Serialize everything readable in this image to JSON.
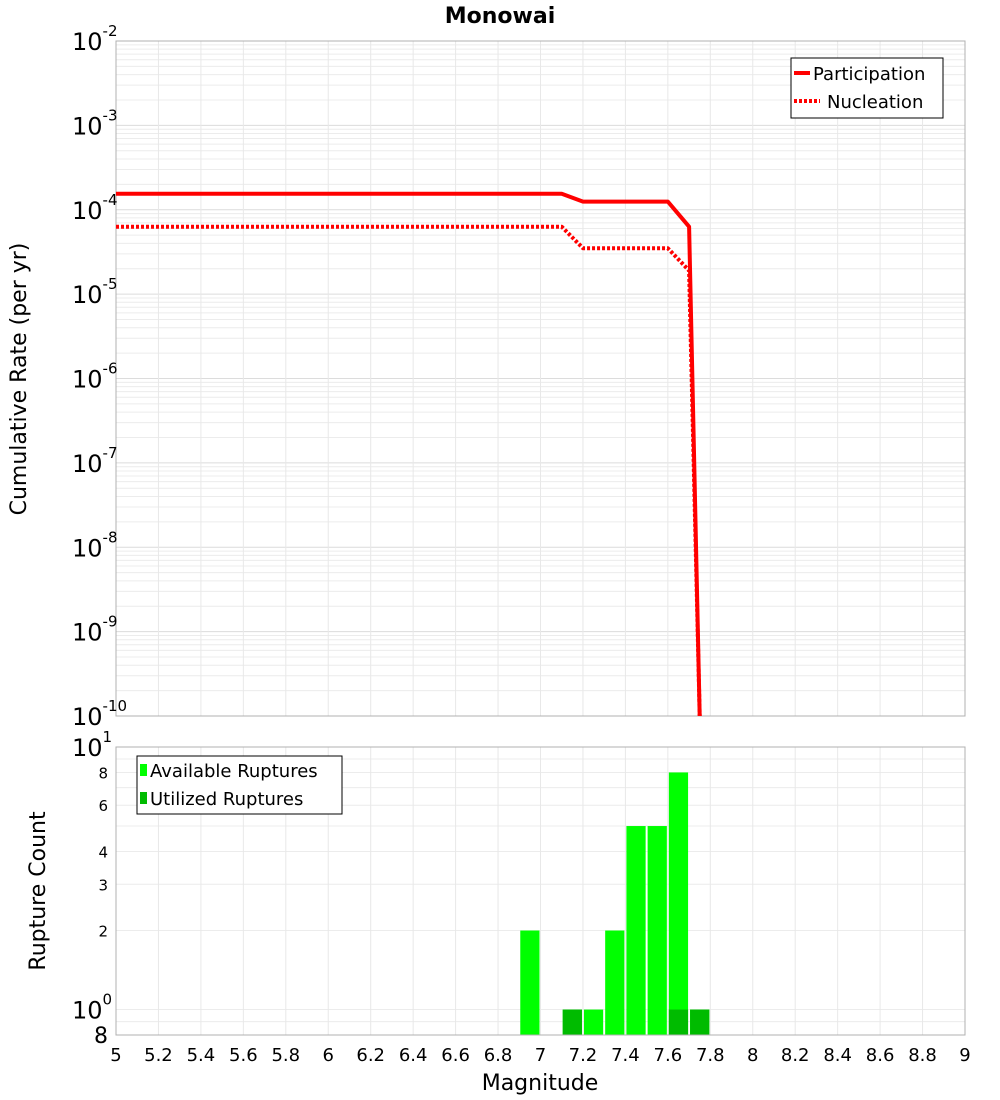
{
  "chart_data": [
    {
      "type": "line",
      "title": "Monowai",
      "xlabel": "Magnitude",
      "ylabel": "Cumulative Rate (per yr)",
      "yscale": "log",
      "xlim": [
        5,
        9
      ],
      "ylim": [
        1e-10,
        0.01
      ],
      "y_ticks": [
        {
          "base": "10",
          "exp": "-2"
        },
        {
          "base": "10",
          "exp": "-3"
        },
        {
          "base": "10",
          "exp": "-4"
        },
        {
          "base": "10",
          "exp": "-5"
        },
        {
          "base": "10",
          "exp": "-6"
        },
        {
          "base": "10",
          "exp": "-7"
        },
        {
          "base": "10",
          "exp": "-8"
        },
        {
          "base": "10",
          "exp": "-9"
        },
        {
          "base": "10",
          "exp": "-10"
        }
      ],
      "legend_position": "top-right",
      "series": [
        {
          "name": "Participation",
          "style": "solid",
          "color": "#ff0000",
          "x": [
            5.0,
            7.1,
            7.2,
            7.6,
            7.7,
            7.75
          ],
          "y": [
            0.000155,
            0.000155,
            0.000125,
            0.000125,
            6.3e-05,
            1e-10
          ]
        },
        {
          "name": "Nucleation",
          "style": "dotted",
          "color": "#ff0000",
          "x": [
            5.0,
            7.1,
            7.2,
            7.6,
            7.7,
            7.75
          ],
          "y": [
            6.3e-05,
            6.3e-05,
            3.5e-05,
            3.5e-05,
            1.9e-05,
            1e-10
          ]
        }
      ]
    },
    {
      "type": "bar",
      "xlabel": "Magnitude",
      "ylabel": "Rupture Count",
      "yscale": "log",
      "xlim": [
        5,
        9
      ],
      "ylim": [
        0.8,
        10
      ],
      "x_ticks": [
        "5",
        "5.2",
        "5.4",
        "5.6",
        "5.8",
        "6",
        "6.2",
        "6.4",
        "6.6",
        "6.8",
        "7",
        "7.2",
        "7.4",
        "7.6",
        "7.8",
        "8",
        "8.2",
        "8.4",
        "8.6",
        "8.8",
        "9"
      ],
      "y_ticks_minor": [
        "8",
        "6",
        "4",
        "3",
        "2"
      ],
      "y_ticks_major": [
        {
          "base": "10",
          "exp": "1"
        },
        {
          "base": "10",
          "exp": "0"
        }
      ],
      "y_tick_bottom": "8",
      "legend_position": "top-left",
      "bar_width": 0.1,
      "series": [
        {
          "name": "Available Ruptures",
          "color": "#00ff00",
          "x": [
            6.95,
            7.15,
            7.25,
            7.35,
            7.45,
            7.55,
            7.65,
            7.75
          ],
          "values": [
            2,
            1,
            1,
            2,
            5,
            5,
            8,
            1
          ]
        },
        {
          "name": "Utilized Ruptures",
          "color": "#00bb00",
          "x": [
            7.15,
            7.65,
            7.75
          ],
          "values": [
            1,
            1,
            1
          ]
        }
      ]
    }
  ]
}
